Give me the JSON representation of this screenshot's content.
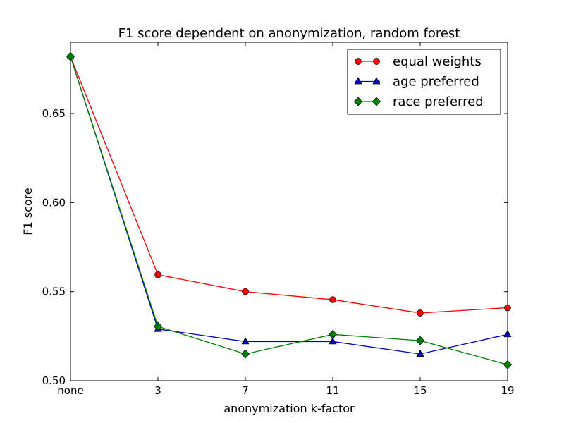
{
  "chart_data": {
    "type": "line",
    "title": "F1 score dependent on anonymization, random forest",
    "xlabel": "anonymization k-factor",
    "ylabel": "F1 score",
    "categories": [
      "none",
      "3",
      "7",
      "11",
      "15",
      "19"
    ],
    "ylim": [
      0.5,
      0.69
    ],
    "yticks": [
      0.5,
      0.55,
      0.6,
      0.65
    ],
    "ytick_labels": [
      "0.50",
      "0.55",
      "0.60",
      "0.65"
    ],
    "grid": false,
    "legend_position": "top-right",
    "series": [
      {
        "name": "equal weights",
        "color": "#ff0000",
        "marker": "circle",
        "values": [
          0.682,
          0.5595,
          0.55,
          0.5455,
          0.538,
          0.541
        ]
      },
      {
        "name": "age preferred",
        "color": "#0000cc",
        "marker": "triangle",
        "values": [
          0.682,
          0.529,
          0.522,
          0.522,
          0.515,
          0.526
        ]
      },
      {
        "name": "race preferred",
        "color": "#008000",
        "marker": "diamond",
        "values": [
          0.682,
          0.5305,
          0.515,
          0.526,
          0.5225,
          0.509
        ]
      }
    ]
  }
}
